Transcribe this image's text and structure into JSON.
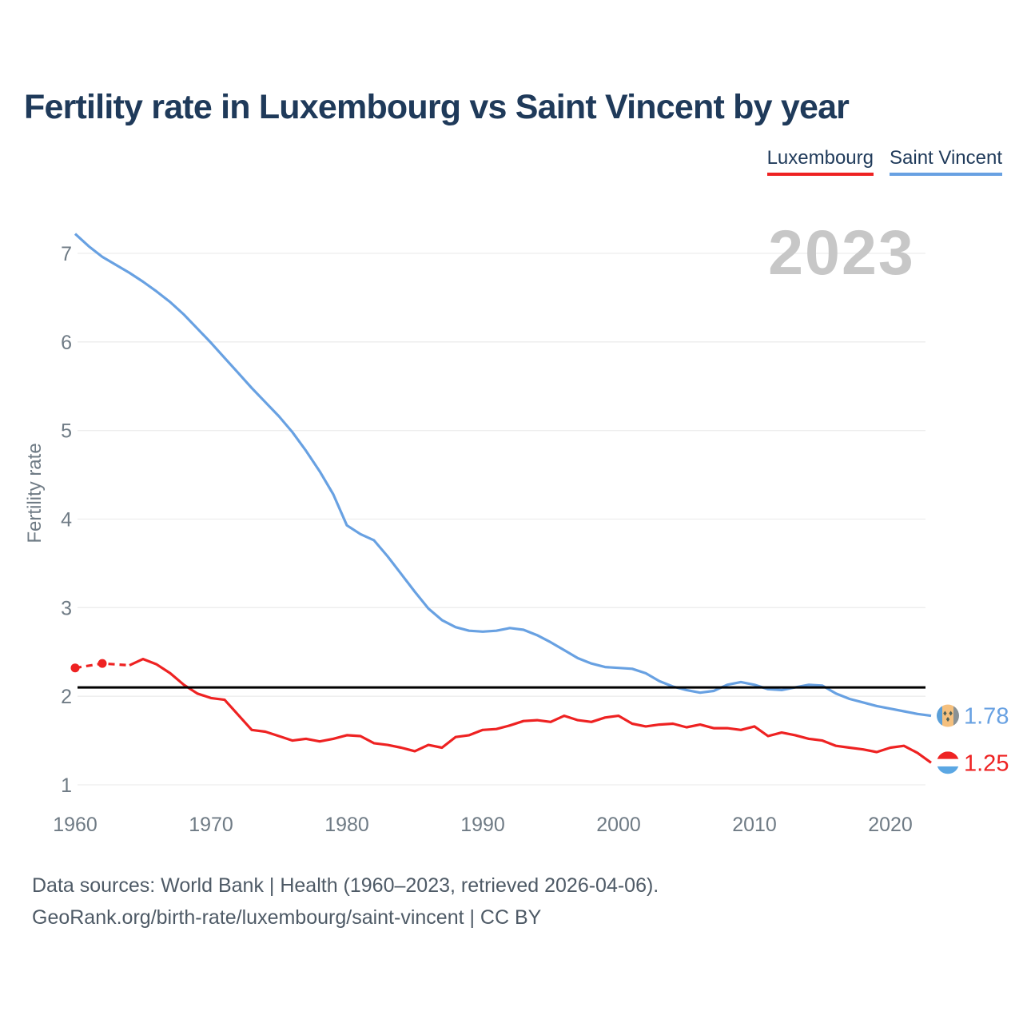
{
  "title": "Fertility rate in Luxembourg vs Saint Vincent by year",
  "watermark": "2023",
  "legend": [
    {
      "label": "Luxembourg",
      "color": "#ee2222"
    },
    {
      "label": "Saint Vincent",
      "color": "#68a1e2"
    }
  ],
  "footer": {
    "line1": "Data sources: World Bank | Health (1960–2023, retrieved 2026-04-06).",
    "line2": "GeoRank.org/birth-rate/luxembourg/saint-vincent | CC BY"
  },
  "colors": {
    "title_text": "#1f3a5a",
    "axis_text": "#6f7b85",
    "gridline": "#ededed",
    "reference_line": "#000000",
    "watermark": "#c7c7c7",
    "footer_text": "#4e5a66"
  },
  "chart_data": {
    "type": "line",
    "title": "Fertility rate in Luxembourg vs Saint Vincent by year",
    "xlabel": "",
    "ylabel": "Fertility rate",
    "x_ticks": [
      1960,
      1970,
      1980,
      1990,
      2000,
      2010,
      2020
    ],
    "y_ticks": [
      1,
      2,
      3,
      4,
      5,
      6,
      7
    ],
    "ylim": [
      1,
      7.4
    ],
    "grid": true,
    "legend_position": "top-right",
    "reference_line": 2.1,
    "x": [
      1960,
      1961,
      1962,
      1963,
      1964,
      1965,
      1966,
      1967,
      1968,
      1969,
      1970,
      1971,
      1972,
      1973,
      1974,
      1975,
      1976,
      1977,
      1978,
      1979,
      1980,
      1981,
      1982,
      1983,
      1984,
      1985,
      1986,
      1987,
      1988,
      1989,
      1990,
      1991,
      1992,
      1993,
      1994,
      1995,
      1996,
      1997,
      1998,
      1999,
      2000,
      2001,
      2002,
      2003,
      2004,
      2005,
      2006,
      2007,
      2008,
      2009,
      2010,
      2011,
      2012,
      2013,
      2014,
      2015,
      2016,
      2017,
      2018,
      2019,
      2020,
      2021,
      2022,
      2023
    ],
    "series": [
      {
        "name": "Saint Vincent",
        "slug": "saint-vincent",
        "color": "#68a1e2",
        "end_label": "1.78",
        "flag": {
          "name": "saint-vincent-flag-icon",
          "layout": "vertical",
          "colors": [
            "#5b9fd8",
            "#f5c07e",
            "#8a9295"
          ],
          "emblem": "diamonds",
          "emblem_color": "#4f6157"
        },
        "values": [
          7.22,
          7.08,
          6.96,
          6.87,
          6.78,
          6.68,
          6.57,
          6.45,
          6.31,
          6.15,
          5.99,
          5.82,
          5.65,
          5.48,
          5.32,
          5.16,
          4.98,
          4.77,
          4.54,
          4.28,
          3.93,
          3.83,
          3.76,
          3.58,
          3.38,
          3.18,
          2.99,
          2.86,
          2.78,
          2.74,
          2.73,
          2.74,
          2.77,
          2.75,
          2.69,
          2.61,
          2.52,
          2.43,
          2.37,
          2.33,
          2.32,
          2.31,
          2.26,
          2.17,
          2.11,
          2.07,
          2.04,
          2.06,
          2.13,
          2.16,
          2.13,
          2.08,
          2.07,
          2.1,
          2.13,
          2.12,
          2.03,
          1.97,
          1.93,
          1.89,
          1.86,
          1.83,
          1.8,
          1.78
        ]
      },
      {
        "name": "Luxembourg",
        "slug": "luxembourg",
        "color": "#ee2222",
        "end_label": "1.25",
        "dashed_until": 1964,
        "marker_years": [
          1960,
          1962
        ],
        "flag": {
          "name": "luxembourg-flag-icon",
          "layout": "horizontal",
          "colors": [
            "#ee2222",
            "#ffffff",
            "#5ba7e3"
          ]
        },
        "values": [
          2.32,
          null,
          2.37,
          null,
          2.35,
          2.42,
          2.36,
          2.26,
          2.13,
          2.03,
          1.98,
          1.96,
          1.79,
          1.62,
          1.6,
          1.55,
          1.5,
          1.52,
          1.49,
          1.52,
          1.56,
          1.55,
          1.47,
          1.45,
          1.42,
          1.38,
          1.45,
          1.42,
          1.54,
          1.56,
          1.62,
          1.63,
          1.67,
          1.72,
          1.73,
          1.71,
          1.78,
          1.73,
          1.71,
          1.76,
          1.78,
          1.69,
          1.66,
          1.68,
          1.69,
          1.65,
          1.68,
          1.64,
          1.64,
          1.62,
          1.66,
          1.55,
          1.59,
          1.56,
          1.52,
          1.5,
          1.44,
          1.42,
          1.4,
          1.37,
          1.42,
          1.44,
          1.36,
          1.25
        ]
      }
    ]
  }
}
